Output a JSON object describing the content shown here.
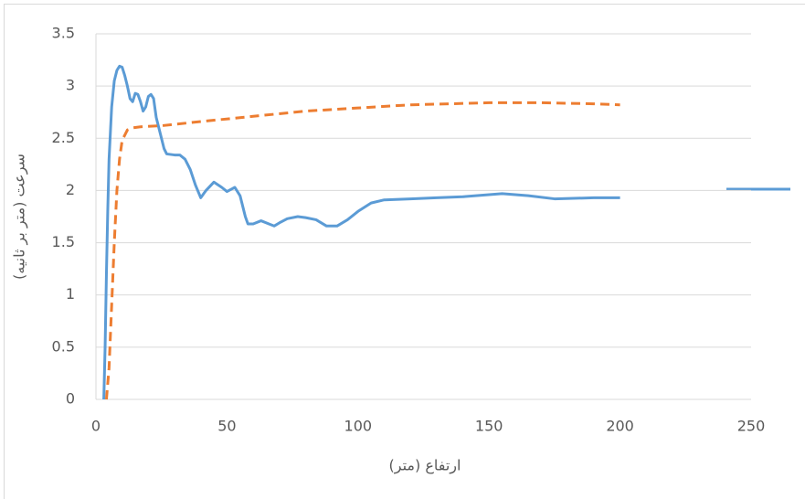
{
  "chart_data": {
    "type": "line",
    "xlabel": "ارتفاع (متر)",
    "ylabel": "سرعت (متر بر ثانیه)",
    "xlim": [
      0,
      250
    ],
    "xticks": [
      0,
      50,
      100,
      150,
      200,
      250
    ],
    "ylim": [
      0,
      3.5
    ],
    "yticks": [
      0,
      0.5,
      1,
      1.5,
      2,
      2.5,
      3,
      3.5
    ],
    "grid": true,
    "series": [
      {
        "color": "#5b9bd5",
        "dash": false,
        "x": [
          3,
          3.5,
          4,
          4.5,
          5,
          6,
          7,
          8,
          9,
          10,
          11,
          12,
          13,
          14,
          15,
          16,
          17,
          18,
          19,
          20,
          21,
          22,
          23,
          24,
          25,
          26,
          27,
          30,
          32,
          34,
          36,
          38,
          40,
          42,
          45,
          48,
          50,
          53,
          55,
          57,
          58,
          60,
          63,
          66,
          68,
          70,
          73,
          77,
          80,
          84,
          88,
          92,
          96,
          100,
          105,
          110,
          120,
          130,
          140,
          150,
          155,
          165,
          175,
          190,
          200
        ],
        "values": [
          0,
          0.5,
          1.2,
          1.8,
          2.3,
          2.8,
          3.05,
          3.15,
          3.19,
          3.18,
          3.1,
          3.0,
          2.88,
          2.85,
          2.93,
          2.92,
          2.85,
          2.76,
          2.8,
          2.9,
          2.92,
          2.88,
          2.7,
          2.6,
          2.5,
          2.4,
          2.35,
          2.34,
          2.34,
          2.3,
          2.2,
          2.05,
          1.93,
          2.0,
          2.08,
          2.03,
          1.99,
          2.03,
          1.95,
          1.75,
          1.68,
          1.68,
          1.71,
          1.68,
          1.66,
          1.69,
          1.73,
          1.75,
          1.74,
          1.72,
          1.66,
          1.66,
          1.72,
          1.8,
          1.88,
          1.91,
          1.92,
          1.93,
          1.94,
          1.96,
          1.97,
          1.95,
          1.92,
          1.93,
          1.93
        ]
      },
      {
        "color": "#ed7d31",
        "dash": true,
        "x": [
          4,
          5,
          6,
          7,
          8,
          9,
          10,
          12,
          14,
          17,
          25,
          40,
          60,
          80,
          100,
          120,
          150,
          170,
          190,
          200
        ],
        "values": [
          0,
          0.3,
          0.9,
          1.5,
          2.0,
          2.3,
          2.48,
          2.58,
          2.6,
          2.61,
          2.62,
          2.66,
          2.71,
          2.76,
          2.79,
          2.82,
          2.84,
          2.84,
          2.83,
          2.82
        ]
      }
    ]
  }
}
